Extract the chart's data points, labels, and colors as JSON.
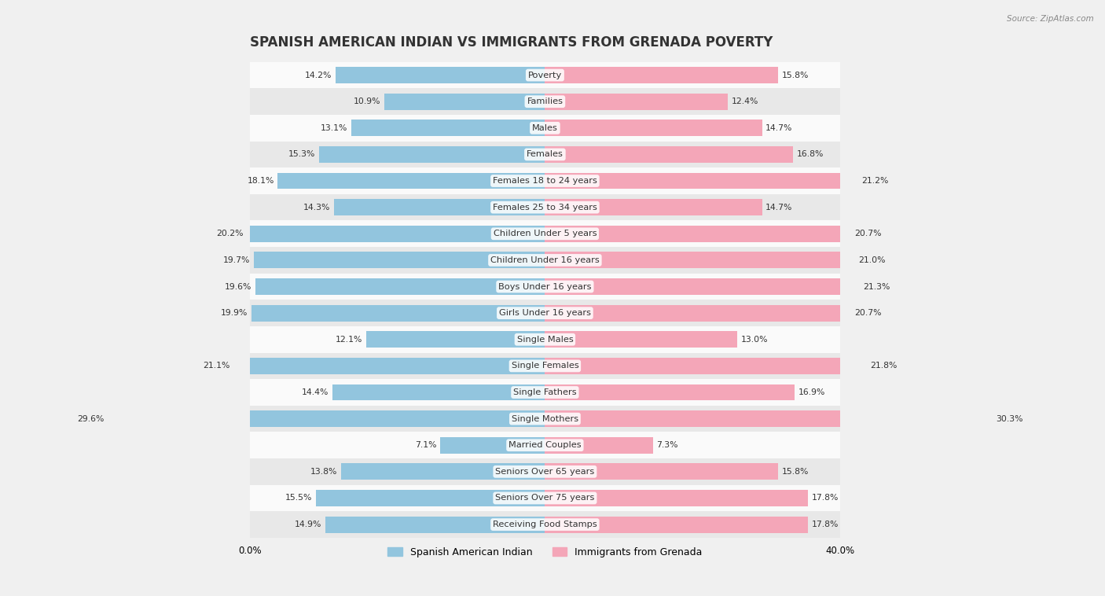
{
  "title": "SPANISH AMERICAN INDIAN VS IMMIGRANTS FROM GRENADA POVERTY",
  "source": "Source: ZipAtlas.com",
  "categories": [
    "Poverty",
    "Families",
    "Males",
    "Females",
    "Females 18 to 24 years",
    "Females 25 to 34 years",
    "Children Under 5 years",
    "Children Under 16 years",
    "Boys Under 16 years",
    "Girls Under 16 years",
    "Single Males",
    "Single Females",
    "Single Fathers",
    "Single Mothers",
    "Married Couples",
    "Seniors Over 65 years",
    "Seniors Over 75 years",
    "Receiving Food Stamps"
  ],
  "left_values": [
    14.2,
    10.9,
    13.1,
    15.3,
    18.1,
    14.3,
    20.2,
    19.7,
    19.6,
    19.9,
    12.1,
    21.1,
    14.4,
    29.6,
    7.1,
    13.8,
    15.5,
    14.9
  ],
  "right_values": [
    15.8,
    12.4,
    14.7,
    16.8,
    21.2,
    14.7,
    20.7,
    21.0,
    21.3,
    20.7,
    13.0,
    21.8,
    16.9,
    30.3,
    7.3,
    15.8,
    17.8,
    17.8
  ],
  "left_color": "#92c5de",
  "right_color": "#f4a6b8",
  "bar_height": 0.62,
  "xlim": [
    0,
    40
  ],
  "background_color": "#f0f0f0",
  "row_bg_light": "#fafafa",
  "row_bg_dark": "#e8e8e8",
  "legend_left": "Spanish American Indian",
  "legend_right": "Immigrants from Grenada",
  "title_fontsize": 12,
  "label_fontsize": 8.2,
  "value_fontsize": 7.8,
  "axis_label_fontsize": 8.5,
  "value_inside_threshold": 25
}
